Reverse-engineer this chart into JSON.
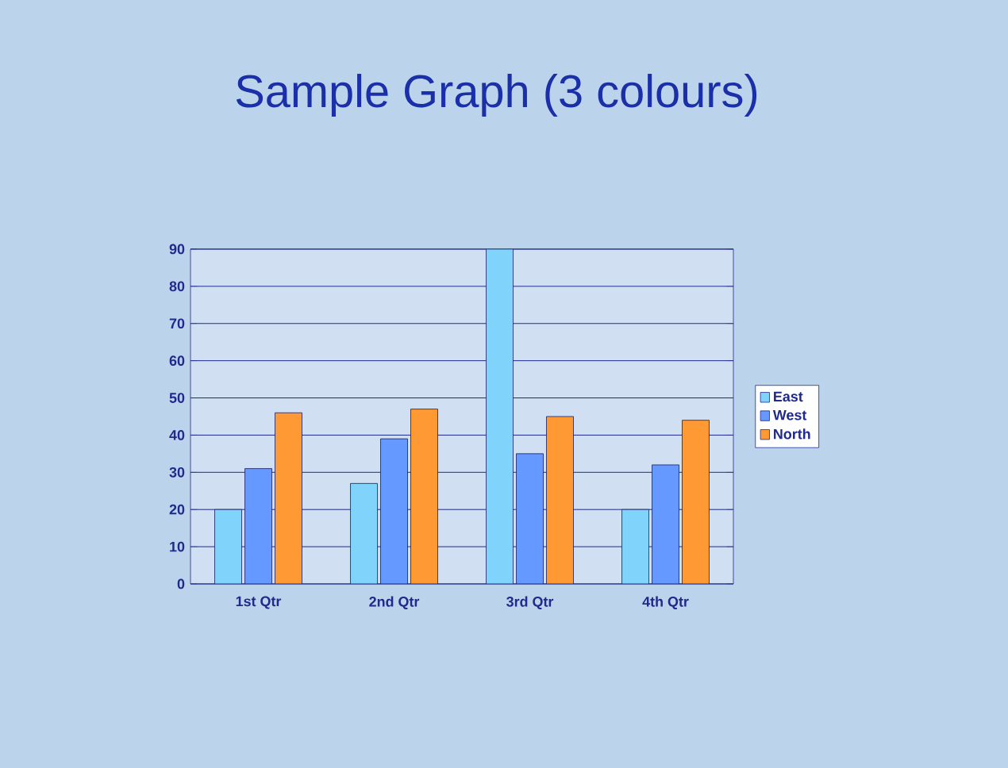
{
  "chart_data": {
    "type": "bar",
    "title": "Sample Graph (3 colours)",
    "categories": [
      "1st Qtr",
      "2nd Qtr",
      "3rd Qtr",
      "4th Qtr"
    ],
    "series": [
      {
        "name": "East",
        "color": "#80d4fb",
        "values": [
          20,
          27,
          90,
          20
        ]
      },
      {
        "name": "West",
        "color": "#6699ff",
        "values": [
          31,
          39,
          35,
          32
        ]
      },
      {
        "name": "North",
        "color": "#ff9933",
        "values": [
          46,
          47,
          45,
          44
        ]
      }
    ],
    "ylim": [
      0,
      90
    ],
    "yticks": [
      0,
      10,
      20,
      30,
      40,
      50,
      60,
      70,
      80,
      90
    ],
    "grid": "y",
    "legend": "right"
  }
}
